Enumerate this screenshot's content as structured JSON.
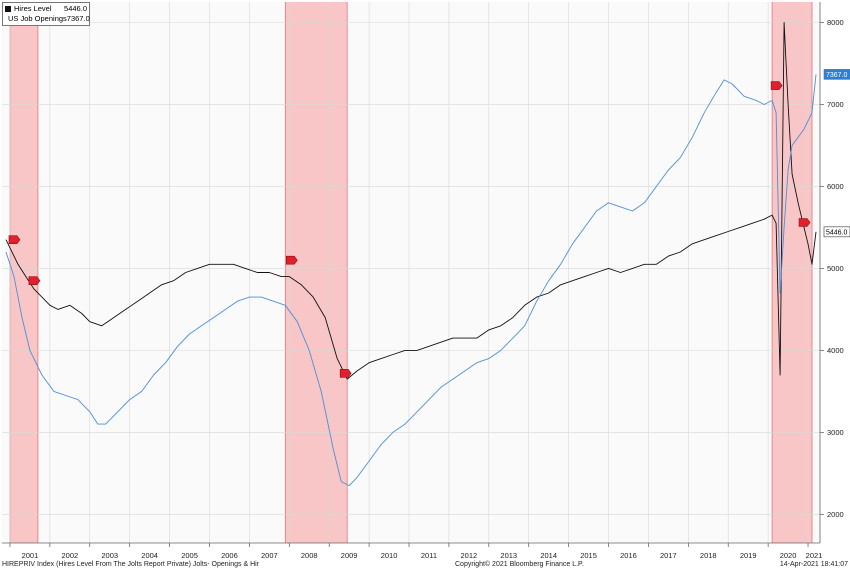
{
  "chart_data": {
    "type": "line",
    "x_range": [
      2000.8,
      2021.3
    ],
    "ylim": [
      1650,
      8250
    ],
    "y_ticks": [
      2000,
      3000,
      4000,
      5000,
      6000,
      7000,
      8000
    ],
    "x_ticks": [
      "2001",
      "2002",
      "2003",
      "2004",
      "2005",
      "2006",
      "2007",
      "2008",
      "2009",
      "2010",
      "2011",
      "2012",
      "2013",
      "2014",
      "2015",
      "2016",
      "2017",
      "2018",
      "2019",
      "2020",
      "2021"
    ],
    "recessions": [
      [
        2001.0,
        2001.7
      ],
      [
        2007.9,
        2009.45
      ],
      [
        2020.1,
        2021.1
      ]
    ],
    "series": [
      {
        "name": "Hires Level",
        "color": "#111111",
        "last_value": "5446.0",
        "points": [
          [
            2000.9,
            5350
          ],
          [
            2001.0,
            5250
          ],
          [
            2001.2,
            5050
          ],
          [
            2001.4,
            4900
          ],
          [
            2001.6,
            4750
          ],
          [
            2001.8,
            4650
          ],
          [
            2002.0,
            4550
          ],
          [
            2002.2,
            4500
          ],
          [
            2002.5,
            4550
          ],
          [
            2002.8,
            4450
          ],
          [
            2003.0,
            4350
          ],
          [
            2003.3,
            4300
          ],
          [
            2003.6,
            4400
          ],
          [
            2003.9,
            4500
          ],
          [
            2004.2,
            4600
          ],
          [
            2004.5,
            4700
          ],
          [
            2004.8,
            4800
          ],
          [
            2005.1,
            4850
          ],
          [
            2005.4,
            4950
          ],
          [
            2005.7,
            5000
          ],
          [
            2006.0,
            5050
          ],
          [
            2006.3,
            5050
          ],
          [
            2006.6,
            5050
          ],
          [
            2006.9,
            5000
          ],
          [
            2007.2,
            4950
          ],
          [
            2007.5,
            4950
          ],
          [
            2007.8,
            4900
          ],
          [
            2008.0,
            4900
          ],
          [
            2008.3,
            4800
          ],
          [
            2008.6,
            4650
          ],
          [
            2008.9,
            4400
          ],
          [
            2009.2,
            3900
          ],
          [
            2009.45,
            3650
          ],
          [
            2009.7,
            3750
          ],
          [
            2010.0,
            3850
          ],
          [
            2010.3,
            3900
          ],
          [
            2010.6,
            3950
          ],
          [
            2010.9,
            4000
          ],
          [
            2011.2,
            4000
          ],
          [
            2011.5,
            4050
          ],
          [
            2011.8,
            4100
          ],
          [
            2012.1,
            4150
          ],
          [
            2012.4,
            4150
          ],
          [
            2012.7,
            4150
          ],
          [
            2013.0,
            4250
          ],
          [
            2013.3,
            4300
          ],
          [
            2013.6,
            4400
          ],
          [
            2013.9,
            4550
          ],
          [
            2014.2,
            4650
          ],
          [
            2014.5,
            4700
          ],
          [
            2014.8,
            4800
          ],
          [
            2015.1,
            4850
          ],
          [
            2015.4,
            4900
          ],
          [
            2015.7,
            4950
          ],
          [
            2016.0,
            5000
          ],
          [
            2016.3,
            4950
          ],
          [
            2016.6,
            5000
          ],
          [
            2016.9,
            5050
          ],
          [
            2017.2,
            5050
          ],
          [
            2017.5,
            5150
          ],
          [
            2017.8,
            5200
          ],
          [
            2018.1,
            5300
          ],
          [
            2018.4,
            5350
          ],
          [
            2018.7,
            5400
          ],
          [
            2019.0,
            5450
          ],
          [
            2019.3,
            5500
          ],
          [
            2019.6,
            5550
          ],
          [
            2019.9,
            5600
          ],
          [
            2020.1,
            5650
          ],
          [
            2020.2,
            5550
          ],
          [
            2020.3,
            3700
          ],
          [
            2020.4,
            8000
          ],
          [
            2020.5,
            7000
          ],
          [
            2020.6,
            6150
          ],
          [
            2020.75,
            5800
          ],
          [
            2020.9,
            5500
          ],
          [
            2021.0,
            5300
          ],
          [
            2021.1,
            5050
          ],
          [
            2021.2,
            5446
          ]
        ]
      },
      {
        "name": "US Job Openings",
        "color": "#4d8fd6",
        "last_value": "7367.0",
        "points": [
          [
            2000.9,
            5200
          ],
          [
            2001.1,
            4900
          ],
          [
            2001.3,
            4400
          ],
          [
            2001.5,
            4000
          ],
          [
            2001.8,
            3700
          ],
          [
            2002.1,
            3500
          ],
          [
            2002.4,
            3450
          ],
          [
            2002.7,
            3400
          ],
          [
            2003.0,
            3250
          ],
          [
            2003.2,
            3100
          ],
          [
            2003.4,
            3100
          ],
          [
            2003.7,
            3250
          ],
          [
            2004.0,
            3400
          ],
          [
            2004.3,
            3500
          ],
          [
            2004.6,
            3700
          ],
          [
            2004.9,
            3850
          ],
          [
            2005.2,
            4050
          ],
          [
            2005.5,
            4200
          ],
          [
            2005.8,
            4300
          ],
          [
            2006.1,
            4400
          ],
          [
            2006.4,
            4500
          ],
          [
            2006.7,
            4600
          ],
          [
            2007.0,
            4650
          ],
          [
            2007.3,
            4650
          ],
          [
            2007.6,
            4600
          ],
          [
            2007.9,
            4550
          ],
          [
            2008.2,
            4350
          ],
          [
            2008.5,
            4000
          ],
          [
            2008.8,
            3500
          ],
          [
            2009.1,
            2800
          ],
          [
            2009.3,
            2400
          ],
          [
            2009.5,
            2350
          ],
          [
            2009.7,
            2450
          ],
          [
            2010.0,
            2650
          ],
          [
            2010.3,
            2850
          ],
          [
            2010.6,
            3000
          ],
          [
            2010.9,
            3100
          ],
          [
            2011.2,
            3250
          ],
          [
            2011.5,
            3400
          ],
          [
            2011.8,
            3550
          ],
          [
            2012.1,
            3650
          ],
          [
            2012.4,
            3750
          ],
          [
            2012.7,
            3850
          ],
          [
            2013.0,
            3900
          ],
          [
            2013.3,
            4000
          ],
          [
            2013.6,
            4150
          ],
          [
            2013.9,
            4300
          ],
          [
            2014.2,
            4600
          ],
          [
            2014.5,
            4850
          ],
          [
            2014.8,
            5050
          ],
          [
            2015.1,
            5300
          ],
          [
            2015.4,
            5500
          ],
          [
            2015.7,
            5700
          ],
          [
            2016.0,
            5800
          ],
          [
            2016.3,
            5750
          ],
          [
            2016.6,
            5700
          ],
          [
            2016.9,
            5800
          ],
          [
            2017.2,
            6000
          ],
          [
            2017.5,
            6200
          ],
          [
            2017.8,
            6350
          ],
          [
            2018.1,
            6600
          ],
          [
            2018.4,
            6900
          ],
          [
            2018.7,
            7150
          ],
          [
            2018.9,
            7300
          ],
          [
            2019.1,
            7250
          ],
          [
            2019.4,
            7100
          ],
          [
            2019.7,
            7050
          ],
          [
            2019.9,
            7000
          ],
          [
            2020.1,
            7050
          ],
          [
            2020.2,
            6900
          ],
          [
            2020.3,
            4700
          ],
          [
            2020.4,
            5500
          ],
          [
            2020.5,
            6200
          ],
          [
            2020.6,
            6500
          ],
          [
            2020.75,
            6600
          ],
          [
            2020.9,
            6700
          ],
          [
            2021.0,
            6800
          ],
          [
            2021.1,
            6900
          ],
          [
            2021.2,
            7367
          ]
        ]
      }
    ],
    "markers": [
      {
        "x": 2001.1,
        "y": 5350
      },
      {
        "x": 2001.6,
        "y": 4850
      },
      {
        "x": 2008.05,
        "y": 5100
      },
      {
        "x": 2009.4,
        "y": 3720
      },
      {
        "x": 2020.2,
        "y": 7230
      },
      {
        "x": 2020.9,
        "y": 5560
      }
    ]
  },
  "footer": {
    "source": "HIREPRIV Index (Hires Level From The Jolts Report Private) Jolts- Openings & Hir",
    "copyright": "Copyright© 2021 Bloomberg Finance L.P.",
    "timestamp": "14-Apr-2021 18:41:07"
  },
  "colors": {
    "recession": "#f7bcbc",
    "recession_edge": "#e87575",
    "marker": "#e0202c",
    "grid": "#d8d8d8"
  }
}
